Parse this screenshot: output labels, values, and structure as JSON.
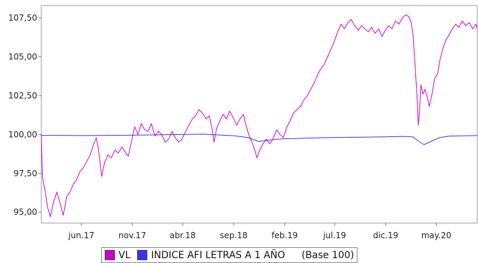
{
  "chart_data": {
    "type": "line",
    "title": "",
    "xlabel": "",
    "ylabel": "",
    "ylim": [
      94.3,
      108.3
    ],
    "y_ticks": [
      "107,50",
      "105,00",
      "102,50",
      "100,00",
      "97,50",
      "95,00"
    ],
    "y_tick_values": [
      107.5,
      105.0,
      102.5,
      100.0,
      97.5,
      95.0
    ],
    "x_ticks": [
      "jun.17",
      "nov.17",
      "abr.18",
      "sep.18",
      "feb.19",
      "jul.19",
      "dic.19",
      "may.20"
    ],
    "x_range": [
      "2017-02-01",
      "2020-09-01"
    ],
    "grid": false,
    "legend_position": "bottom",
    "base_note": "(Base 100)",
    "series": [
      {
        "name": "VL",
        "color": "#cc00cc",
        "points": [
          [
            "2017-02-01",
            100.0
          ],
          [
            "2017-02-04",
            97.3
          ],
          [
            "2017-02-12",
            96.4
          ],
          [
            "2017-02-20",
            95.3
          ],
          [
            "2017-02-28",
            94.7
          ],
          [
            "2017-03-10",
            95.7
          ],
          [
            "2017-03-20",
            96.3
          ],
          [
            "2017-03-30",
            95.5
          ],
          [
            "2017-04-08",
            94.8
          ],
          [
            "2017-04-18",
            96.0
          ],
          [
            "2017-04-28",
            96.3
          ],
          [
            "2017-05-08",
            96.8
          ],
          [
            "2017-05-18",
            97.1
          ],
          [
            "2017-05-28",
            97.6
          ],
          [
            "2017-06-08",
            97.9
          ],
          [
            "2017-06-18",
            98.3
          ],
          [
            "2017-06-28",
            98.7
          ],
          [
            "2017-07-08",
            99.4
          ],
          [
            "2017-07-16",
            99.8
          ],
          [
            "2017-07-24",
            98.8
          ],
          [
            "2017-08-01",
            97.3
          ],
          [
            "2017-08-10",
            98.2
          ],
          [
            "2017-08-20",
            98.7
          ],
          [
            "2017-08-30",
            98.5
          ],
          [
            "2017-09-10",
            99.0
          ],
          [
            "2017-09-20",
            98.8
          ],
          [
            "2017-10-01",
            99.2
          ],
          [
            "2017-10-10",
            98.9
          ],
          [
            "2017-10-20",
            98.6
          ],
          [
            "2017-10-30",
            99.6
          ],
          [
            "2017-11-08",
            100.5
          ],
          [
            "2017-11-18",
            100.0
          ],
          [
            "2017-11-28",
            100.7
          ],
          [
            "2017-12-08",
            100.3
          ],
          [
            "2017-12-18",
            100.2
          ],
          [
            "2017-12-28",
            100.7
          ],
          [
            "2018-01-08",
            99.9
          ],
          [
            "2018-01-18",
            100.2
          ],
          [
            "2018-01-28",
            100.0
          ],
          [
            "2018-02-08",
            99.5
          ],
          [
            "2018-02-18",
            99.7
          ],
          [
            "2018-02-28",
            100.2
          ],
          [
            "2018-03-10",
            99.8
          ],
          [
            "2018-03-20",
            99.5
          ],
          [
            "2018-03-30",
            99.7
          ],
          [
            "2018-04-10",
            100.2
          ],
          [
            "2018-04-20",
            100.6
          ],
          [
            "2018-04-30",
            101.0
          ],
          [
            "2018-05-10",
            101.2
          ],
          [
            "2018-05-20",
            101.6
          ],
          [
            "2018-05-30",
            101.4
          ],
          [
            "2018-06-10",
            101.0
          ],
          [
            "2018-06-20",
            101.2
          ],
          [
            "2018-06-28",
            100.4
          ],
          [
            "2018-07-04",
            99.5
          ],
          [
            "2018-07-12",
            100.4
          ],
          [
            "2018-07-22",
            100.9
          ],
          [
            "2018-08-01",
            101.3
          ],
          [
            "2018-08-10",
            101.0
          ],
          [
            "2018-08-20",
            101.5
          ],
          [
            "2018-08-30",
            101.1
          ],
          [
            "2018-09-10",
            100.6
          ],
          [
            "2018-09-20",
            101.0
          ],
          [
            "2018-09-30",
            101.3
          ],
          [
            "2018-10-08",
            100.6
          ],
          [
            "2018-10-16",
            100.0
          ],
          [
            "2018-10-24",
            99.6
          ],
          [
            "2018-11-02",
            99.1
          ],
          [
            "2018-11-10",
            98.5
          ],
          [
            "2018-11-18",
            99.0
          ],
          [
            "2018-11-28",
            99.4
          ],
          [
            "2018-12-08",
            99.7
          ],
          [
            "2018-12-18",
            99.4
          ],
          [
            "2018-12-28",
            99.7
          ],
          [
            "2019-01-08",
            100.3
          ],
          [
            "2019-01-18",
            100.0
          ],
          [
            "2019-01-28",
            99.8
          ],
          [
            "2019-02-08",
            100.5
          ],
          [
            "2019-02-18",
            100.9
          ],
          [
            "2019-02-28",
            101.4
          ],
          [
            "2019-03-10",
            101.6
          ],
          [
            "2019-03-20",
            101.8
          ],
          [
            "2019-03-30",
            102.2
          ],
          [
            "2019-04-10",
            102.5
          ],
          [
            "2019-04-20",
            102.9
          ],
          [
            "2019-04-30",
            103.3
          ],
          [
            "2019-05-10",
            103.8
          ],
          [
            "2019-05-20",
            104.2
          ],
          [
            "2019-05-30",
            104.5
          ],
          [
            "2019-06-10",
            105.0
          ],
          [
            "2019-06-20",
            105.5
          ],
          [
            "2019-06-30",
            106.0
          ],
          [
            "2019-07-10",
            106.6
          ],
          [
            "2019-07-20",
            107.1
          ],
          [
            "2019-07-30",
            106.8
          ],
          [
            "2019-08-10",
            107.2
          ],
          [
            "2019-08-20",
            107.4
          ],
          [
            "2019-08-30",
            107.0
          ],
          [
            "2019-09-10",
            106.7
          ],
          [
            "2019-09-20",
            107.0
          ],
          [
            "2019-09-30",
            106.8
          ],
          [
            "2019-10-10",
            106.6
          ],
          [
            "2019-10-20",
            106.9
          ],
          [
            "2019-10-30",
            106.5
          ],
          [
            "2019-11-10",
            106.8
          ],
          [
            "2019-11-20",
            106.3
          ],
          [
            "2019-11-30",
            106.7
          ],
          [
            "2019-12-10",
            107.0
          ],
          [
            "2019-12-20",
            106.8
          ],
          [
            "2019-12-30",
            107.3
          ],
          [
            "2020-01-10",
            107.1
          ],
          [
            "2020-01-20",
            107.5
          ],
          [
            "2020-01-30",
            107.7
          ],
          [
            "2020-02-08",
            107.6
          ],
          [
            "2020-02-16",
            107.2
          ],
          [
            "2020-02-22",
            106.2
          ],
          [
            "2020-02-28",
            104.2
          ],
          [
            "2020-03-04",
            102.5
          ],
          [
            "2020-03-08",
            100.6
          ],
          [
            "2020-03-12",
            101.6
          ],
          [
            "2020-03-16",
            103.2
          ],
          [
            "2020-03-22",
            102.6
          ],
          [
            "2020-03-28",
            102.9
          ],
          [
            "2020-04-04",
            102.4
          ],
          [
            "2020-04-10",
            101.8
          ],
          [
            "2020-04-18",
            102.6
          ],
          [
            "2020-04-26",
            103.6
          ],
          [
            "2020-05-05",
            103.9
          ],
          [
            "2020-05-12",
            104.8
          ],
          [
            "2020-05-20",
            105.5
          ],
          [
            "2020-05-30",
            106.1
          ],
          [
            "2020-06-08",
            106.4
          ],
          [
            "2020-06-18",
            106.8
          ],
          [
            "2020-06-28",
            107.1
          ],
          [
            "2020-07-08",
            106.9
          ],
          [
            "2020-07-18",
            107.3
          ],
          [
            "2020-07-28",
            107.0
          ],
          [
            "2020-08-08",
            107.2
          ],
          [
            "2020-08-18",
            106.8
          ],
          [
            "2020-08-28",
            107.1
          ],
          [
            "2020-09-01",
            106.8
          ]
        ]
      },
      {
        "name": "INDICE AFI LETRAS A 1 AÑO",
        "color": "#3333ff",
        "points": [
          [
            "2017-02-01",
            99.95
          ],
          [
            "2017-06-01",
            99.93
          ],
          [
            "2017-10-01",
            99.95
          ],
          [
            "2018-02-01",
            99.98
          ],
          [
            "2018-06-01",
            100.02
          ],
          [
            "2018-09-01",
            99.92
          ],
          [
            "2018-10-15",
            99.8
          ],
          [
            "2018-11-15",
            99.55
          ],
          [
            "2018-12-20",
            99.65
          ],
          [
            "2019-01-20",
            99.72
          ],
          [
            "2019-03-01",
            99.74
          ],
          [
            "2019-06-01",
            99.8
          ],
          [
            "2019-09-01",
            99.82
          ],
          [
            "2019-12-01",
            99.85
          ],
          [
            "2020-01-20",
            99.88
          ],
          [
            "2020-02-20",
            99.85
          ],
          [
            "2020-03-10",
            99.55
          ],
          [
            "2020-03-25",
            99.35
          ],
          [
            "2020-04-15",
            99.55
          ],
          [
            "2020-05-10",
            99.8
          ],
          [
            "2020-06-10",
            99.9
          ],
          [
            "2020-09-01",
            99.93
          ]
        ]
      }
    ]
  }
}
